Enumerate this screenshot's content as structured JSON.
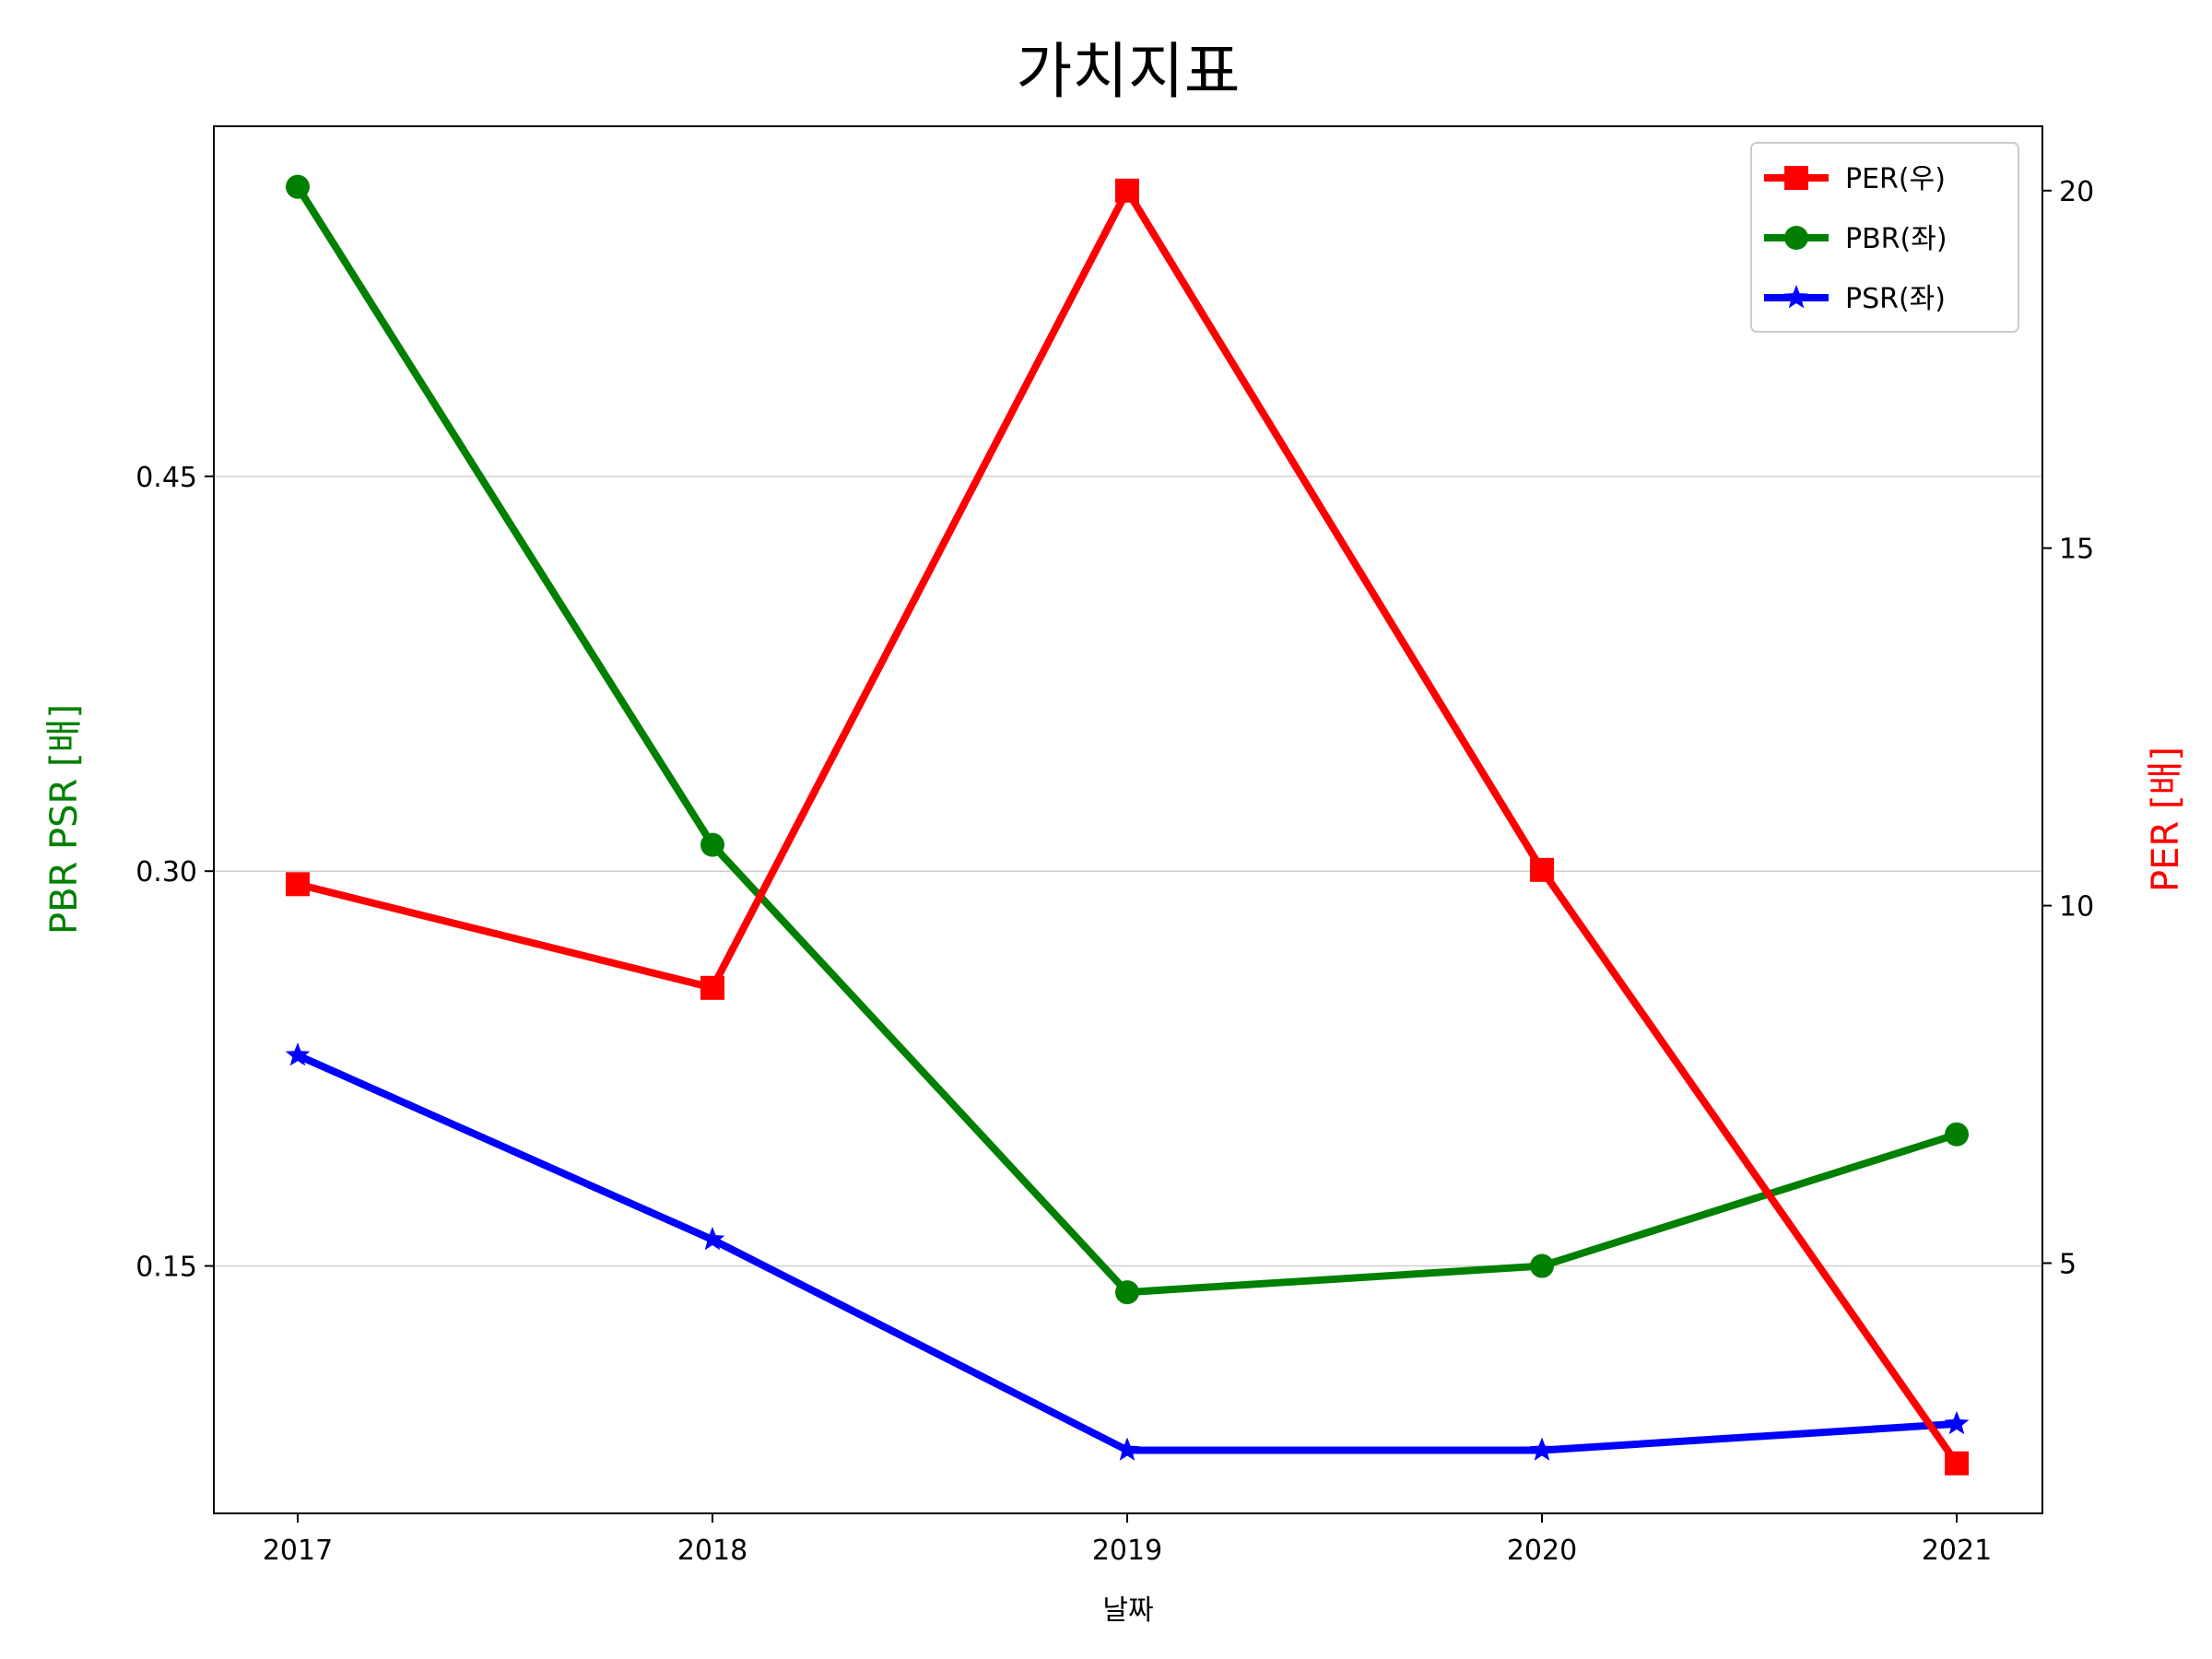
{
  "chart_data": {
    "type": "line",
    "title": "가치지표",
    "xlabel": "날짜",
    "ylabel_left": "PBR PSR [배]",
    "ylabel_right": "PER [배]",
    "ylabel_left_color": "#008000",
    "ylabel_right_color": "#ff0000",
    "categories": [
      "2017",
      "2018",
      "2019",
      "2020",
      "2021"
    ],
    "y_left": {
      "ticks": [
        "0.15",
        "0.30",
        "0.45"
      ],
      "tick_values": [
        0.15,
        0.3,
        0.45
      ],
      "ylim": [
        0.056,
        0.583
      ],
      "grid": true
    },
    "y_right": {
      "ticks": [
        "5",
        "10",
        "15",
        "20"
      ],
      "tick_values": [
        5,
        10,
        15,
        20
      ],
      "ylim": [
        1.5,
        20.9
      ]
    },
    "legend_position": "top-right",
    "series": [
      {
        "name": "PER(우)",
        "axis": "right",
        "color": "#ff0000",
        "marker": "square",
        "values": [
          10.3,
          8.85,
          20.0,
          10.5,
          2.2
        ]
      },
      {
        "name": "PBR(좌)",
        "axis": "left",
        "color": "#008000",
        "marker": "circle",
        "values": [
          0.56,
          0.31,
          0.14,
          0.15,
          0.2
        ]
      },
      {
        "name": "PSR(좌)",
        "axis": "left",
        "color": "#0000ff",
        "marker": "star",
        "values": [
          0.23,
          0.16,
          0.08,
          0.08,
          0.09
        ]
      }
    ]
  }
}
